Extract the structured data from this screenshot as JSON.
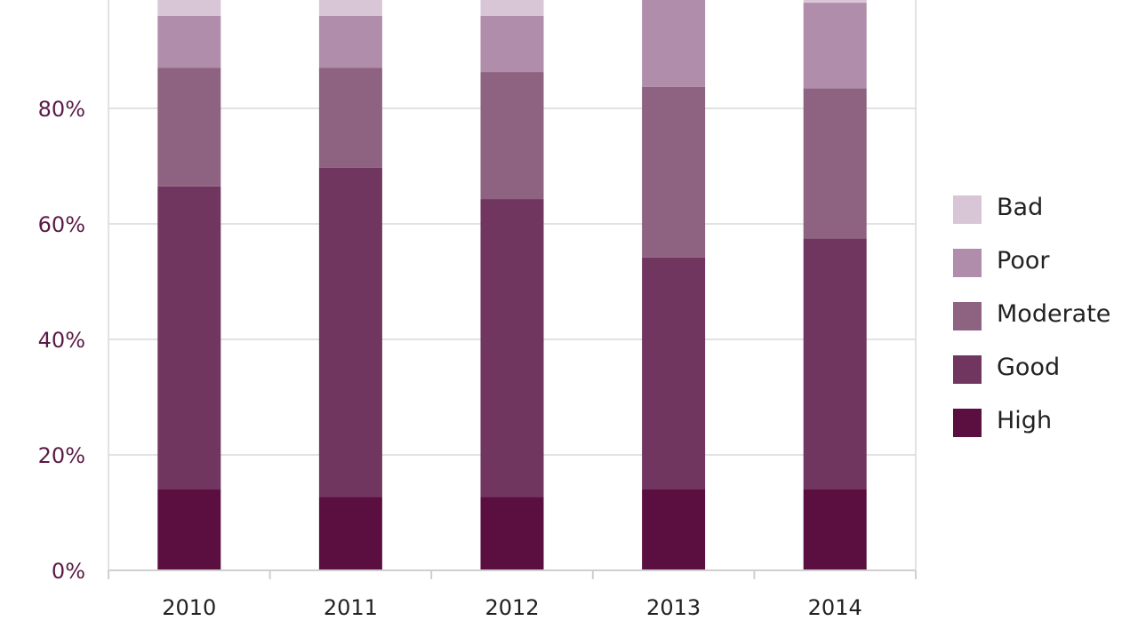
{
  "chart_data": {
    "type": "bar",
    "stacked": true,
    "categories": [
      "2010",
      "2011",
      "2012",
      "2013",
      "2014"
    ],
    "yticks": [
      "0%",
      "20%",
      "40%",
      "60%",
      "80%"
    ],
    "ylim": [
      0,
      100
    ],
    "grid": true,
    "legend_position": "right",
    "series": [
      {
        "name": "High",
        "color": "#5a0f40",
        "values": [
          14,
          12.7,
          12.7,
          14,
          14
        ]
      },
      {
        "name": "Good",
        "color": "#70365f",
        "values": [
          52.5,
          57,
          51.6,
          40.2,
          43.5
        ]
      },
      {
        "name": "Moderate",
        "color": "#8d6381",
        "values": [
          20.5,
          17.3,
          22,
          29.5,
          26
        ]
      },
      {
        "name": "Poor",
        "color": "#b08eab",
        "values": [
          9,
          9,
          9.7,
          15.3,
          14.8
        ]
      },
      {
        "name": "Bad",
        "color": "#d8c6d7",
        "values": [
          4,
          4,
          4,
          0,
          0.7
        ]
      }
    ]
  }
}
